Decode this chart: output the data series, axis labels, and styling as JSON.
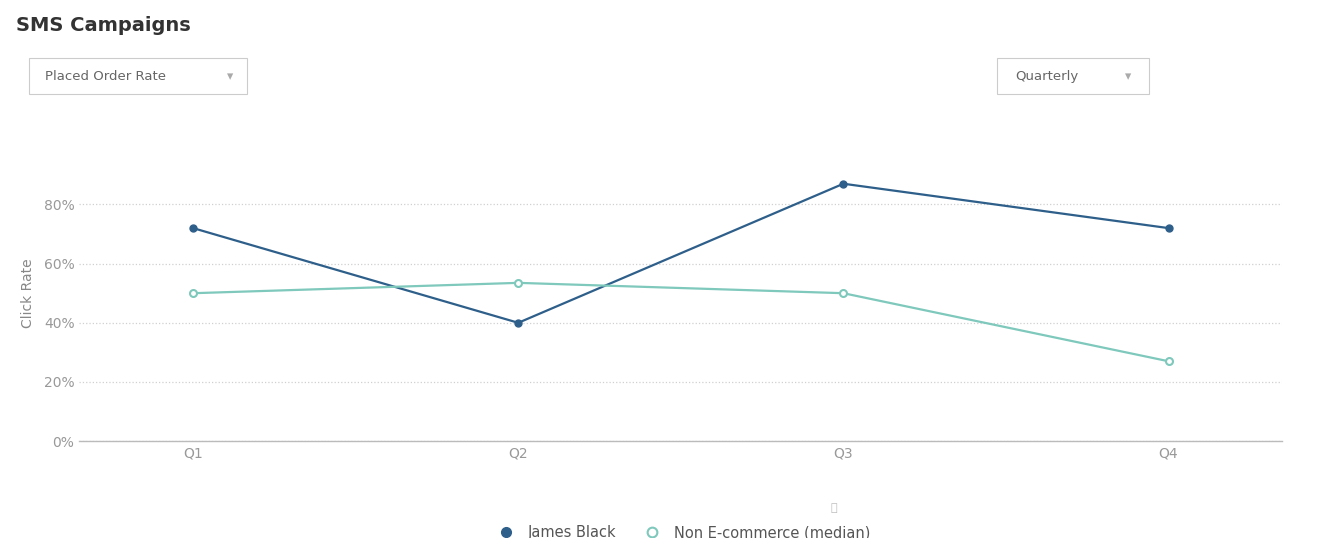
{
  "title": "SMS Campaigns",
  "ylabel": "Click Rate",
  "categories": [
    "Q1",
    "Q2",
    "Q3",
    "Q4"
  ],
  "james_black": [
    0.72,
    0.4,
    0.87,
    0.72
  ],
  "non_ecommerce": [
    0.5,
    0.535,
    0.5,
    0.27
  ],
  "james_black_color": "#2E5F8A",
  "non_ecommerce_color": "#7EC8BC",
  "background_color": "#ffffff",
  "grid_color": "#d0d0d0",
  "ylim": [
    0,
    1.0
  ],
  "yticks": [
    0.0,
    0.2,
    0.4,
    0.6,
    0.8
  ],
  "ytick_labels": [
    "0%",
    "20%",
    "40%",
    "60%",
    "80%"
  ],
  "title_fontsize": 14,
  "axis_label_fontsize": 10,
  "tick_fontsize": 10,
  "legend_label_1": "James Black",
  "legend_label_2": "Non E-commerce (median)",
  "dropdown1_text": "Placed Order Rate",
  "dropdown2_text": "Quarterly",
  "tick_color": "#999999",
  "label_color": "#888888",
  "title_color": "#333333"
}
